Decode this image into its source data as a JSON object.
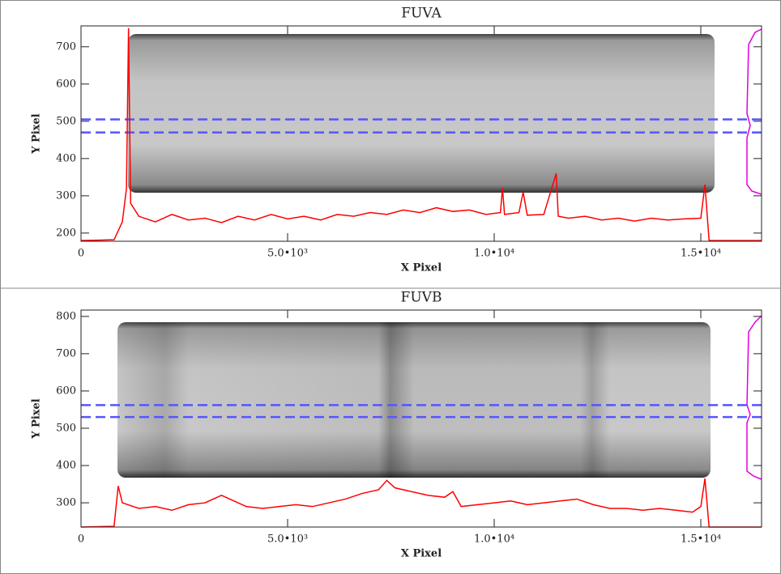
{
  "chart_data": [
    {
      "type": "line",
      "title": "FUVA",
      "xlabel": "X Pixel",
      "ylabel": "Y Pixel",
      "xlim": [
        0,
        16470
      ],
      "ylim": [
        178,
        756
      ],
      "xticks": [
        0,
        {
          "value": 5000,
          "label": "5.0•10³"
        },
        {
          "value": 10000,
          "label": "1.0•10⁴"
        },
        {
          "value": 15000,
          "label": "1.5•10⁴"
        }
      ],
      "yticks": [
        200,
        300,
        400,
        500,
        600,
        700
      ],
      "x": [
        0,
        800,
        1000,
        1100,
        1150,
        1200,
        1400,
        1800,
        2200,
        2600,
        3000,
        3400,
        3800,
        4200,
        4600,
        5000,
        5400,
        5800,
        6200,
        6600,
        7000,
        7400,
        7800,
        8200,
        8600,
        9000,
        9400,
        9800,
        10150,
        10200,
        10250,
        10600,
        10700,
        10800,
        11200,
        11500,
        11550,
        11800,
        12200,
        12600,
        13000,
        13400,
        13800,
        14200,
        14600,
        15000,
        15100,
        15200,
        16470
      ],
      "series": [
        {
          "color": "#ff0000",
          "values": [
            180,
            182,
            230,
            320,
            750,
            280,
            245,
            230,
            250,
            235,
            240,
            228,
            245,
            235,
            250,
            238,
            245,
            235,
            250,
            245,
            255,
            250,
            262,
            255,
            268,
            258,
            262,
            250,
            255,
            320,
            250,
            255,
            310,
            248,
            250,
            360,
            245,
            240,
            245,
            235,
            240,
            232,
            240,
            235,
            238,
            240,
            330,
            180,
            180
          ]
        }
      ],
      "hlines": [
        470,
        505
      ],
      "hline_color": "#5555ff"
    },
    {
      "type": "line",
      "title": "FUVB",
      "xlabel": "X Pixel",
      "ylabel": "Y Pixel",
      "xlim": [
        0,
        16470
      ],
      "ylim": [
        235,
        817
      ],
      "xticks": [
        0,
        {
          "value": 5000,
          "label": "5.0•10³"
        },
        {
          "value": 10000,
          "label": "1.0•10⁴"
        },
        {
          "value": 15000,
          "label": "1.5•10⁴"
        }
      ],
      "yticks": [
        300,
        400,
        500,
        600,
        700,
        800
      ],
      "x": [
        0,
        800,
        900,
        1000,
        1400,
        1800,
        2200,
        2600,
        3000,
        3400,
        3600,
        4000,
        4400,
        4800,
        5200,
        5600,
        6000,
        6400,
        6800,
        7200,
        7400,
        7600,
        8000,
        8400,
        8800,
        9000,
        9200,
        9600,
        10000,
        10400,
        10800,
        11200,
        11600,
        12000,
        12400,
        12800,
        13200,
        13600,
        14000,
        14400,
        14800,
        15000,
        15100,
        15200,
        16470
      ],
      "series": [
        {
          "color": "#ff0000",
          "values": [
            235,
            237,
            345,
            300,
            285,
            290,
            280,
            295,
            300,
            320,
            310,
            290,
            285,
            290,
            295,
            290,
            300,
            310,
            325,
            335,
            360,
            340,
            330,
            320,
            315,
            330,
            290,
            295,
            300,
            305,
            295,
            300,
            305,
            310,
            295,
            285,
            285,
            280,
            285,
            280,
            275,
            290,
            365,
            235,
            235
          ]
        }
      ],
      "hlines": [
        530,
        562
      ],
      "hline_color": "#5555ff"
    }
  ]
}
